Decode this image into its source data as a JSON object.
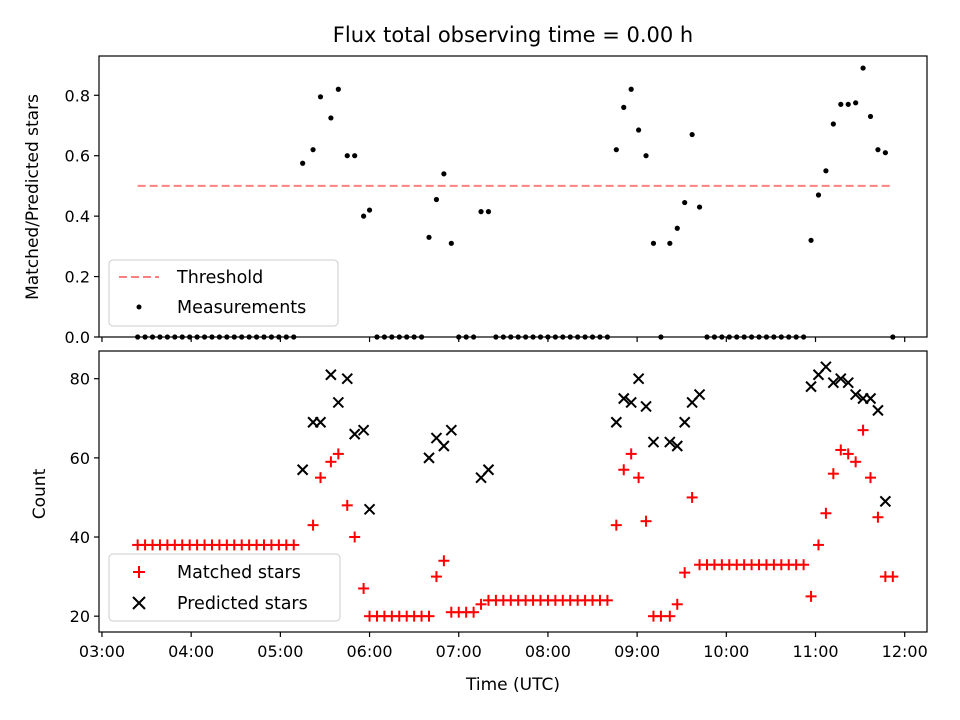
{
  "chart_data": [
    {
      "type": "scatter",
      "title": "Flux total observing time = 0.00 h",
      "ylabel": "Matched/Predicted stars",
      "xlim": [
        "02:58",
        "12:15"
      ],
      "ylim": [
        0,
        0.93
      ],
      "yticks": [
        "0.0",
        "0.2",
        "0.4",
        "0.6",
        "0.8"
      ],
      "threshold": {
        "name": "Threshold",
        "value": 0.5,
        "x_start": "03:24",
        "x_end": "11:50",
        "color": "#ff7f7f"
      },
      "series": [
        {
          "name": "Measurements",
          "color": "#000000",
          "points": [
            [
              "03:24",
              0
            ],
            [
              "03:29",
              0
            ],
            [
              "03:34",
              0
            ],
            [
              "03:39",
              0
            ],
            [
              "03:44",
              0
            ],
            [
              "03:49",
              0
            ],
            [
              "03:54",
              0
            ],
            [
              "03:59",
              0
            ],
            [
              "04:04",
              0
            ],
            [
              "04:09",
              0
            ],
            [
              "04:14",
              0
            ],
            [
              "04:19",
              0
            ],
            [
              "04:24",
              0
            ],
            [
              "04:29",
              0
            ],
            [
              "04:34",
              0
            ],
            [
              "04:39",
              0
            ],
            [
              "04:44",
              0
            ],
            [
              "04:49",
              0
            ],
            [
              "04:54",
              0
            ],
            [
              "04:59",
              0
            ],
            [
              "05:04",
              0
            ],
            [
              "05:09",
              0
            ],
            [
              "05:15",
              0.575
            ],
            [
              "05:22",
              0.62
            ],
            [
              "05:27",
              0.795
            ],
            [
              "05:34",
              0.725
            ],
            [
              "05:39",
              0.82
            ],
            [
              "05:45",
              0.6
            ],
            [
              "05:50",
              0.6
            ],
            [
              "05:56",
              0.4
            ],
            [
              "06:00",
              0.42
            ],
            [
              "06:05",
              0
            ],
            [
              "06:10",
              0
            ],
            [
              "06:15",
              0
            ],
            [
              "06:20",
              0
            ],
            [
              "06:25",
              0
            ],
            [
              "06:30",
              0
            ],
            [
              "06:35",
              0
            ],
            [
              "06:40",
              0.33
            ],
            [
              "06:45",
              0.455
            ],
            [
              "06:50",
              0.54
            ],
            [
              "06:55",
              0.31
            ],
            [
              "07:00",
              0
            ],
            [
              "07:05",
              0
            ],
            [
              "07:10",
              0
            ],
            [
              "07:15",
              0.415
            ],
            [
              "07:20",
              0.415
            ],
            [
              "07:25",
              0
            ],
            [
              "07:30",
              0
            ],
            [
              "07:35",
              0
            ],
            [
              "07:40",
              0
            ],
            [
              "07:45",
              0
            ],
            [
              "07:50",
              0
            ],
            [
              "07:55",
              0
            ],
            [
              "08:00",
              0
            ],
            [
              "08:05",
              0
            ],
            [
              "08:10",
              0
            ],
            [
              "08:15",
              0
            ],
            [
              "08:20",
              0
            ],
            [
              "08:25",
              0
            ],
            [
              "08:30",
              0
            ],
            [
              "08:35",
              0
            ],
            [
              "08:40",
              0
            ],
            [
              "08:46",
              0.62
            ],
            [
              "08:51",
              0.76
            ],
            [
              "08:56",
              0.82
            ],
            [
              "09:01",
              0.685
            ],
            [
              "09:06",
              0.6
            ],
            [
              "09:11",
              0.31
            ],
            [
              "09:16",
              0
            ],
            [
              "09:22",
              0.31
            ],
            [
              "09:27",
              0.36
            ],
            [
              "09:32",
              0.445
            ],
            [
              "09:37",
              0.67
            ],
            [
              "09:42",
              0.43
            ],
            [
              "09:47",
              0
            ],
            [
              "09:52",
              0
            ],
            [
              "09:57",
              0
            ],
            [
              "10:02",
              0
            ],
            [
              "10:07",
              0
            ],
            [
              "10:12",
              0
            ],
            [
              "10:17",
              0
            ],
            [
              "10:22",
              0
            ],
            [
              "10:27",
              0
            ],
            [
              "10:32",
              0
            ],
            [
              "10:37",
              0
            ],
            [
              "10:42",
              0
            ],
            [
              "10:47",
              0
            ],
            [
              "10:52",
              0
            ],
            [
              "10:57",
              0.32
            ],
            [
              "11:02",
              0.47
            ],
            [
              "11:07",
              0.55
            ],
            [
              "11:12",
              0.705
            ],
            [
              "11:17",
              0.77
            ],
            [
              "11:22",
              0.77
            ],
            [
              "11:27",
              0.775
            ],
            [
              "11:32",
              0.89
            ],
            [
              "11:37",
              0.73
            ],
            [
              "11:42",
              0.62
            ],
            [
              "11:47",
              0.61
            ],
            [
              "11:52",
              0
            ]
          ]
        }
      ],
      "legend": {
        "position": "lower-left",
        "entries": [
          "Threshold",
          "Measurements"
        ]
      }
    },
    {
      "type": "scatter",
      "xlabel": "Time (UTC)",
      "ylabel": "Count",
      "xlim": [
        "02:58",
        "12:15"
      ],
      "ylim": [
        16,
        87
      ],
      "xticks": [
        "03:00",
        "04:00",
        "05:00",
        "06:00",
        "07:00",
        "08:00",
        "09:00",
        "10:00",
        "11:00",
        "12:00"
      ],
      "yticks": [
        "20",
        "40",
        "60",
        "80"
      ],
      "series": [
        {
          "name": "Matched stars",
          "color": "#ff0000",
          "marker": "plus",
          "points": [
            [
              "03:24",
              38
            ],
            [
              "03:29",
              38
            ],
            [
              "03:34",
              38
            ],
            [
              "03:39",
              38
            ],
            [
              "03:44",
              38
            ],
            [
              "03:49",
              38
            ],
            [
              "03:54",
              38
            ],
            [
              "03:59",
              38
            ],
            [
              "04:04",
              38
            ],
            [
              "04:09",
              38
            ],
            [
              "04:14",
              38
            ],
            [
              "04:19",
              38
            ],
            [
              "04:24",
              38
            ],
            [
              "04:29",
              38
            ],
            [
              "04:34",
              38
            ],
            [
              "04:39",
              38
            ],
            [
              "04:44",
              38
            ],
            [
              "04:49",
              38
            ],
            [
              "04:54",
              38
            ],
            [
              "04:59",
              38
            ],
            [
              "05:04",
              38
            ],
            [
              "05:09",
              38
            ],
            [
              "05:22",
              43
            ],
            [
              "05:27",
              55
            ],
            [
              "05:34",
              59
            ],
            [
              "05:39",
              61
            ],
            [
              "05:45",
              48
            ],
            [
              "05:50",
              40
            ],
            [
              "05:56",
              27
            ],
            [
              "06:00",
              20
            ],
            [
              "06:05",
              20
            ],
            [
              "06:10",
              20
            ],
            [
              "06:15",
              20
            ],
            [
              "06:20",
              20
            ],
            [
              "06:25",
              20
            ],
            [
              "06:30",
              20
            ],
            [
              "06:35",
              20
            ],
            [
              "06:40",
              20
            ],
            [
              "06:45",
              30
            ],
            [
              "06:50",
              34
            ],
            [
              "06:55",
              21
            ],
            [
              "07:00",
              21
            ],
            [
              "07:05",
              21
            ],
            [
              "07:10",
              21
            ],
            [
              "07:15",
              23
            ],
            [
              "07:20",
              24
            ],
            [
              "07:25",
              24
            ],
            [
              "07:30",
              24
            ],
            [
              "07:35",
              24
            ],
            [
              "07:40",
              24
            ],
            [
              "07:45",
              24
            ],
            [
              "07:50",
              24
            ],
            [
              "07:55",
              24
            ],
            [
              "08:00",
              24
            ],
            [
              "08:05",
              24
            ],
            [
              "08:10",
              24
            ],
            [
              "08:15",
              24
            ],
            [
              "08:20",
              24
            ],
            [
              "08:25",
              24
            ],
            [
              "08:30",
              24
            ],
            [
              "08:35",
              24
            ],
            [
              "08:40",
              24
            ],
            [
              "08:46",
              43
            ],
            [
              "08:51",
              57
            ],
            [
              "08:56",
              61
            ],
            [
              "09:01",
              55
            ],
            [
              "09:06",
              44
            ],
            [
              "09:11",
              20
            ],
            [
              "09:16",
              20
            ],
            [
              "09:22",
              20
            ],
            [
              "09:27",
              23
            ],
            [
              "09:32",
              31
            ],
            [
              "09:37",
              50
            ],
            [
              "09:42",
              33
            ],
            [
              "09:47",
              33
            ],
            [
              "09:52",
              33
            ],
            [
              "09:57",
              33
            ],
            [
              "10:02",
              33
            ],
            [
              "10:07",
              33
            ],
            [
              "10:12",
              33
            ],
            [
              "10:17",
              33
            ],
            [
              "10:22",
              33
            ],
            [
              "10:27",
              33
            ],
            [
              "10:32",
              33
            ],
            [
              "10:37",
              33
            ],
            [
              "10:42",
              33
            ],
            [
              "10:47",
              33
            ],
            [
              "10:52",
              33
            ],
            [
              "10:57",
              25
            ],
            [
              "11:02",
              38
            ],
            [
              "11:07",
              46
            ],
            [
              "11:12",
              56
            ],
            [
              "11:17",
              62
            ],
            [
              "11:22",
              61
            ],
            [
              "11:27",
              59
            ],
            [
              "11:32",
              67
            ],
            [
              "11:37",
              55
            ],
            [
              "11:42",
              45
            ],
            [
              "11:47",
              30
            ],
            [
              "11:52",
              30
            ]
          ]
        },
        {
          "name": "Predicted stars",
          "color": "#000000",
          "marker": "x",
          "points": [
            [
              "05:15",
              57
            ],
            [
              "05:22",
              69
            ],
            [
              "05:27",
              69
            ],
            [
              "05:34",
              81
            ],
            [
              "05:39",
              74
            ],
            [
              "05:45",
              80
            ],
            [
              "05:50",
              66
            ],
            [
              "05:56",
              67
            ],
            [
              "06:00",
              47
            ],
            [
              "06:40",
              60
            ],
            [
              "06:45",
              65
            ],
            [
              "06:50",
              63
            ],
            [
              "06:55",
              67
            ],
            [
              "07:15",
              55
            ],
            [
              "07:20",
              57
            ],
            [
              "08:46",
              69
            ],
            [
              "08:51",
              75
            ],
            [
              "08:56",
              74
            ],
            [
              "09:01",
              80
            ],
            [
              "09:06",
              73
            ],
            [
              "09:11",
              64
            ],
            [
              "09:22",
              64
            ],
            [
              "09:27",
              63
            ],
            [
              "09:32",
              69
            ],
            [
              "09:37",
              74
            ],
            [
              "09:42",
              76
            ],
            [
              "10:57",
              78
            ],
            [
              "11:02",
              81
            ],
            [
              "11:07",
              83
            ],
            [
              "11:12",
              79
            ],
            [
              "11:17",
              80
            ],
            [
              "11:22",
              79
            ],
            [
              "11:27",
              76
            ],
            [
              "11:32",
              75
            ],
            [
              "11:37",
              75
            ],
            [
              "11:42",
              72
            ],
            [
              "11:47",
              49
            ]
          ]
        }
      ],
      "legend": {
        "position": "lower-left",
        "entries": [
          "Matched stars",
          "Predicted stars"
        ]
      }
    }
  ]
}
